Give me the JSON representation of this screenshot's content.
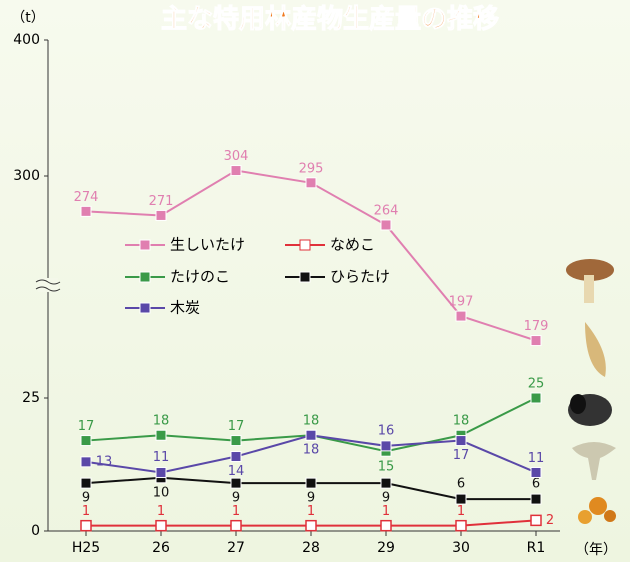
{
  "chart_data": {
    "type": "line",
    "title": "主な特用林産物生産量の推移",
    "y_label": "（t）",
    "x_label": "（年）",
    "categories": [
      "H25",
      "26",
      "27",
      "28",
      "29",
      "30",
      "R1"
    ],
    "yticks": [
      0,
      25,
      300,
      400
    ],
    "series": [
      {
        "name": "生しいたけ",
        "color": "#e07fb0",
        "values": [
          274,
          271,
          304,
          295,
          264,
          197,
          179
        ]
      },
      {
        "name": "なめこ",
        "color": "#e0303a",
        "values": [
          1,
          1,
          1,
          1,
          1,
          1,
          2
        ]
      },
      {
        "name": "たけのこ",
        "color": "#3a9a48",
        "values": [
          17,
          18,
          17,
          18,
          15,
          18,
          25
        ]
      },
      {
        "name": "ひらたけ",
        "color": "#111111",
        "values": [
          9,
          10,
          9,
          9,
          9,
          6,
          6
        ]
      },
      {
        "name": "木炭",
        "color": "#5a48a8",
        "values": [
          13,
          11,
          14,
          18,
          16,
          17,
          11
        ]
      }
    ]
  }
}
